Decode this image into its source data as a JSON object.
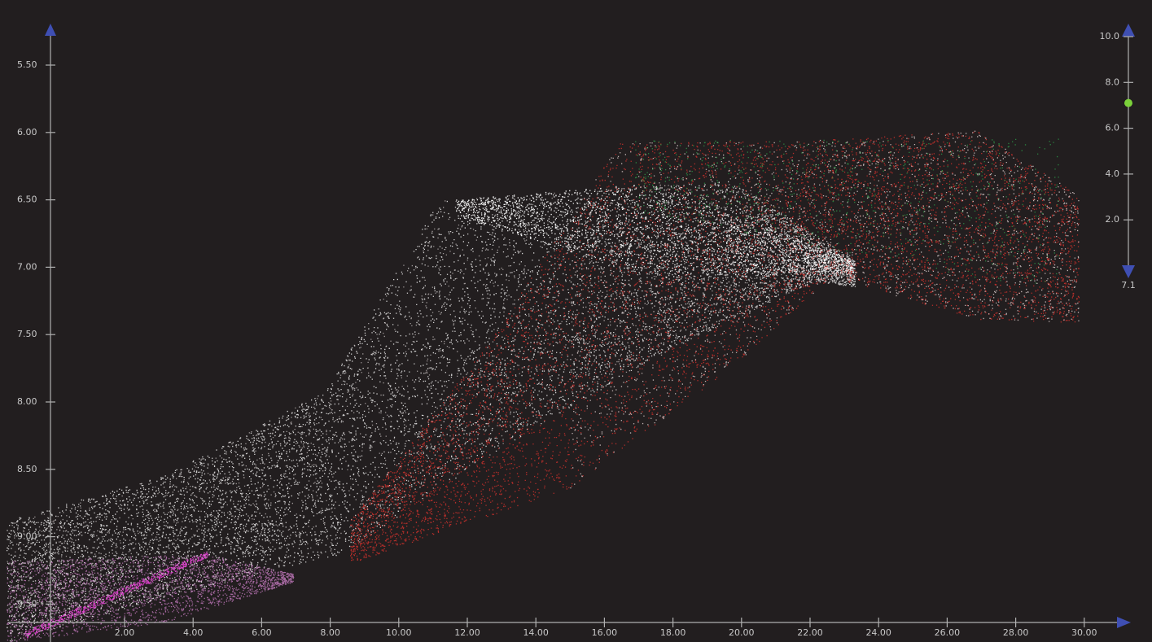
{
  "left_axis": {
    "ticks": [
      "5.50",
      "6.00",
      "6.50",
      "7.00",
      "7.50",
      "8.00",
      "8.50",
      "9.00",
      "9.50"
    ]
  },
  "bottom_axis": {
    "ticks": [
      "2.00",
      "4.00",
      "6.00",
      "8.00",
      "10.00",
      "12.00",
      "14.00",
      "16.00",
      "18.00",
      "20.00",
      "22.00",
      "24.00",
      "26.00",
      "28.00",
      "30.00"
    ]
  },
  "slider": {
    "ticks": [
      "10.0",
      "8.0",
      "6.0",
      "4.0",
      "2.0"
    ],
    "value": "7.1"
  }
}
